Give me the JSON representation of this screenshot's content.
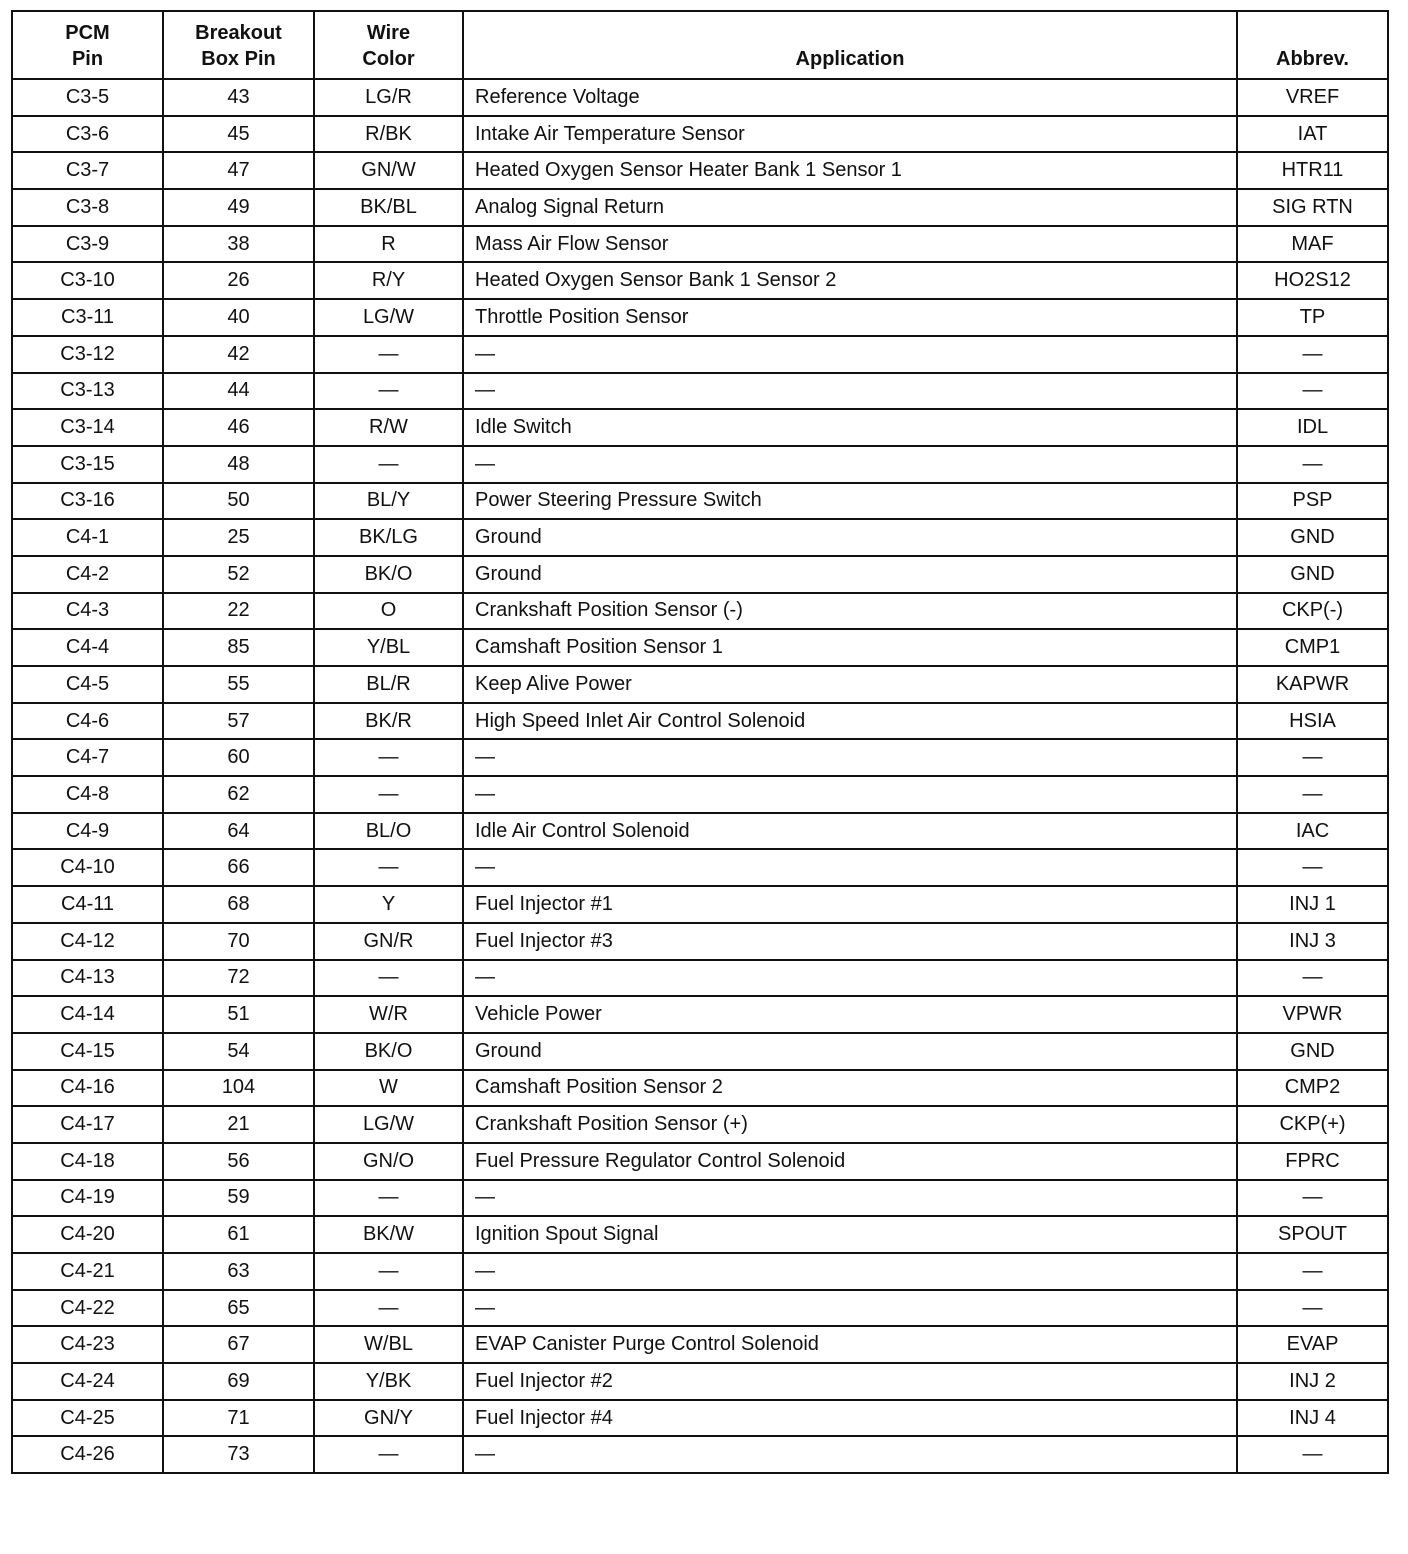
{
  "headers": [
    "PCM\nPin",
    "Breakout\nBox Pin",
    "Wire\nColor",
    "Application",
    "Abbrev."
  ],
  "rows": [
    [
      "C3-5",
      "43",
      "LG/R",
      "Reference Voltage",
      "VREF"
    ],
    [
      "C3-6",
      "45",
      "R/BK",
      "Intake Air Temperature Sensor",
      "IAT"
    ],
    [
      "C3-7",
      "47",
      "GN/W",
      "Heated Oxygen Sensor Heater Bank 1 Sensor 1",
      "HTR11"
    ],
    [
      "C3-8",
      "49",
      "BK/BL",
      "Analog Signal Return",
      "SIG RTN"
    ],
    [
      "C3-9",
      "38",
      "R",
      "Mass Air Flow Sensor",
      "MAF"
    ],
    [
      "C3-10",
      "26",
      "R/Y",
      "Heated Oxygen Sensor Bank 1 Sensor 2",
      "HO2S12"
    ],
    [
      "C3-11",
      "40",
      "LG/W",
      "Throttle Position Sensor",
      "TP"
    ],
    [
      "C3-12",
      "42",
      "—",
      "—",
      "—"
    ],
    [
      "C3-13",
      "44",
      "—",
      "—",
      "—"
    ],
    [
      "C3-14",
      "46",
      "R/W",
      "Idle Switch",
      "IDL"
    ],
    [
      "C3-15",
      "48",
      "—",
      "—",
      "—"
    ],
    [
      "C3-16",
      "50",
      "BL/Y",
      "Power Steering Pressure Switch",
      "PSP"
    ],
    [
      "C4-1",
      "25",
      "BK/LG",
      "Ground",
      "GND"
    ],
    [
      "C4-2",
      "52",
      "BK/O",
      "Ground",
      "GND"
    ],
    [
      "C4-3",
      "22",
      "O",
      "Crankshaft Position Sensor (-)",
      "CKP(-)"
    ],
    [
      "C4-4",
      "85",
      "Y/BL",
      "Camshaft Position Sensor 1",
      "CMP1"
    ],
    [
      "C4-5",
      "55",
      "BL/R",
      "Keep Alive Power",
      "KAPWR"
    ],
    [
      "C4-6",
      "57",
      "BK/R",
      "High Speed Inlet Air Control Solenoid",
      "HSIA"
    ],
    [
      "C4-7",
      "60",
      "—",
      "—",
      "—"
    ],
    [
      "C4-8",
      "62",
      "—",
      "—",
      "—"
    ],
    [
      "C4-9",
      "64",
      "BL/O",
      "Idle Air Control Solenoid",
      "IAC"
    ],
    [
      "C4-10",
      "66",
      "—",
      "—",
      "—"
    ],
    [
      "C4-11",
      "68",
      "Y",
      "Fuel Injector #1",
      "INJ 1"
    ],
    [
      "C4-12",
      "70",
      "GN/R",
      "Fuel Injector #3",
      "INJ 3"
    ],
    [
      "C4-13",
      "72",
      "—",
      "—",
      "—"
    ],
    [
      "C4-14",
      "51",
      "W/R",
      "Vehicle Power",
      "VPWR"
    ],
    [
      "C4-15",
      "54",
      "BK/O",
      "Ground",
      "GND"
    ],
    [
      "C4-16",
      "104",
      "W",
      "Camshaft Position Sensor 2",
      "CMP2"
    ],
    [
      "C4-17",
      "21",
      "LG/W",
      "Crankshaft Position Sensor (+)",
      "CKP(+)"
    ],
    [
      "C4-18",
      "56",
      "GN/O",
      "Fuel Pressure Regulator Control Solenoid",
      "FPRC"
    ],
    [
      "C4-19",
      "59",
      "—",
      "—",
      "—"
    ],
    [
      "C4-20",
      "61",
      "BK/W",
      "Ignition Spout Signal",
      "SPOUT"
    ],
    [
      "C4-21",
      "63",
      "—",
      "—",
      "—"
    ],
    [
      "C4-22",
      "65",
      "—",
      "—",
      "—"
    ],
    [
      "C4-23",
      "67",
      "W/BL",
      "EVAP Canister Purge Control Solenoid",
      "EVAP"
    ],
    [
      "C4-24",
      "69",
      "Y/BK",
      "Fuel Injector #2",
      "INJ 2"
    ],
    [
      "C4-25",
      "71",
      "GN/Y",
      "Fuel Injector #4",
      "INJ 4"
    ],
    [
      "C4-26",
      "73",
      "—",
      "—",
      "—"
    ]
  ]
}
